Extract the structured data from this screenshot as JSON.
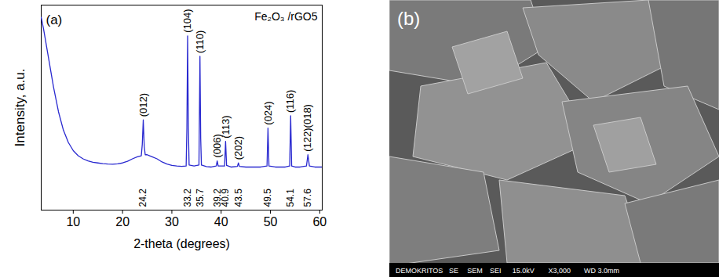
{
  "chart_data": {
    "type": "line",
    "title": "Fe₂O₃ /rGO5",
    "panel_label": "(a)",
    "x_label": "2-theta (degrees)",
    "y_label": "Intensity, a.u.",
    "color": "#2a2ad0",
    "xlim": [
      3.5,
      60.5
    ],
    "xticks": [
      10,
      20,
      30,
      40,
      50,
      60
    ],
    "ylim": [
      0,
      100
    ],
    "tick_labels": "x",
    "grid": false,
    "x": [
      3.5,
      4,
      5,
      6,
      7,
      8,
      9,
      10,
      11,
      12,
      13,
      14,
      15,
      16,
      17,
      18,
      19,
      20,
      21,
      22,
      23,
      23.8,
      24.0,
      24.2,
      24.4,
      24.6,
      25,
      25.5,
      26,
      27,
      28,
      29,
      30,
      31,
      32,
      32.9,
      33.05,
      33.2,
      33.35,
      33.5,
      34.5,
      35.5,
      35.55,
      35.7,
      35.85,
      36.0,
      37,
      38,
      39.0,
      39.2,
      39.4,
      40.7,
      40.9,
      41.1,
      42,
      43.3,
      43.5,
      43.7,
      45,
      46,
      47,
      48,
      49.3,
      49.5,
      49.7,
      51,
      52,
      53,
      53.9,
      54.1,
      54.3,
      55,
      56,
      57.3,
      57.6,
      57.9,
      59,
      60.5
    ],
    "values": [
      94,
      88,
      74,
      60,
      48,
      39,
      33,
      29,
      26.5,
      25,
      24,
      23.3,
      23,
      22.7,
      22.5,
      22.4,
      22.6,
      23,
      23.8,
      25,
      26,
      26.5,
      32,
      44,
      31,
      27,
      27,
      26.5,
      26,
      25,
      23.5,
      22.5,
      21.8,
      21.5,
      21.3,
      21.5,
      40,
      85,
      40,
      22,
      21.5,
      22,
      35,
      75,
      35,
      22,
      21.2,
      21,
      21.5,
      24,
      21.5,
      21.5,
      33.5,
      21.8,
      21,
      21.3,
      23,
      21.3,
      21,
      21,
      21,
      21,
      21.5,
      40,
      21.5,
      21,
      21,
      21,
      21.5,
      46,
      21.5,
      21,
      21,
      21.5,
      27,
      21.5,
      21,
      21
    ],
    "peaks": [
      {
        "x": 24.2,
        "label": "(012)"
      },
      {
        "x": 33.2,
        "label": "(104)"
      },
      {
        "x": 35.7,
        "label": "(110)"
      },
      {
        "x": 39.2,
        "label": "(006)"
      },
      {
        "x": 40.9,
        "label": "(113)"
      },
      {
        "x": 43.5,
        "label": "(202)"
      },
      {
        "x": 49.5,
        "label": "(024)"
      },
      {
        "x": 54.1,
        "label": "(116)"
      },
      {
        "x": 57.6,
        "label": "(122)(018)"
      }
    ]
  },
  "image": {
    "label": "(b)",
    "caption": [
      "DEMOKRITOS",
      "SE",
      "SEM",
      "SEI",
      "15.0kV",
      "X3,000",
      "WD 3.0mm"
    ]
  }
}
